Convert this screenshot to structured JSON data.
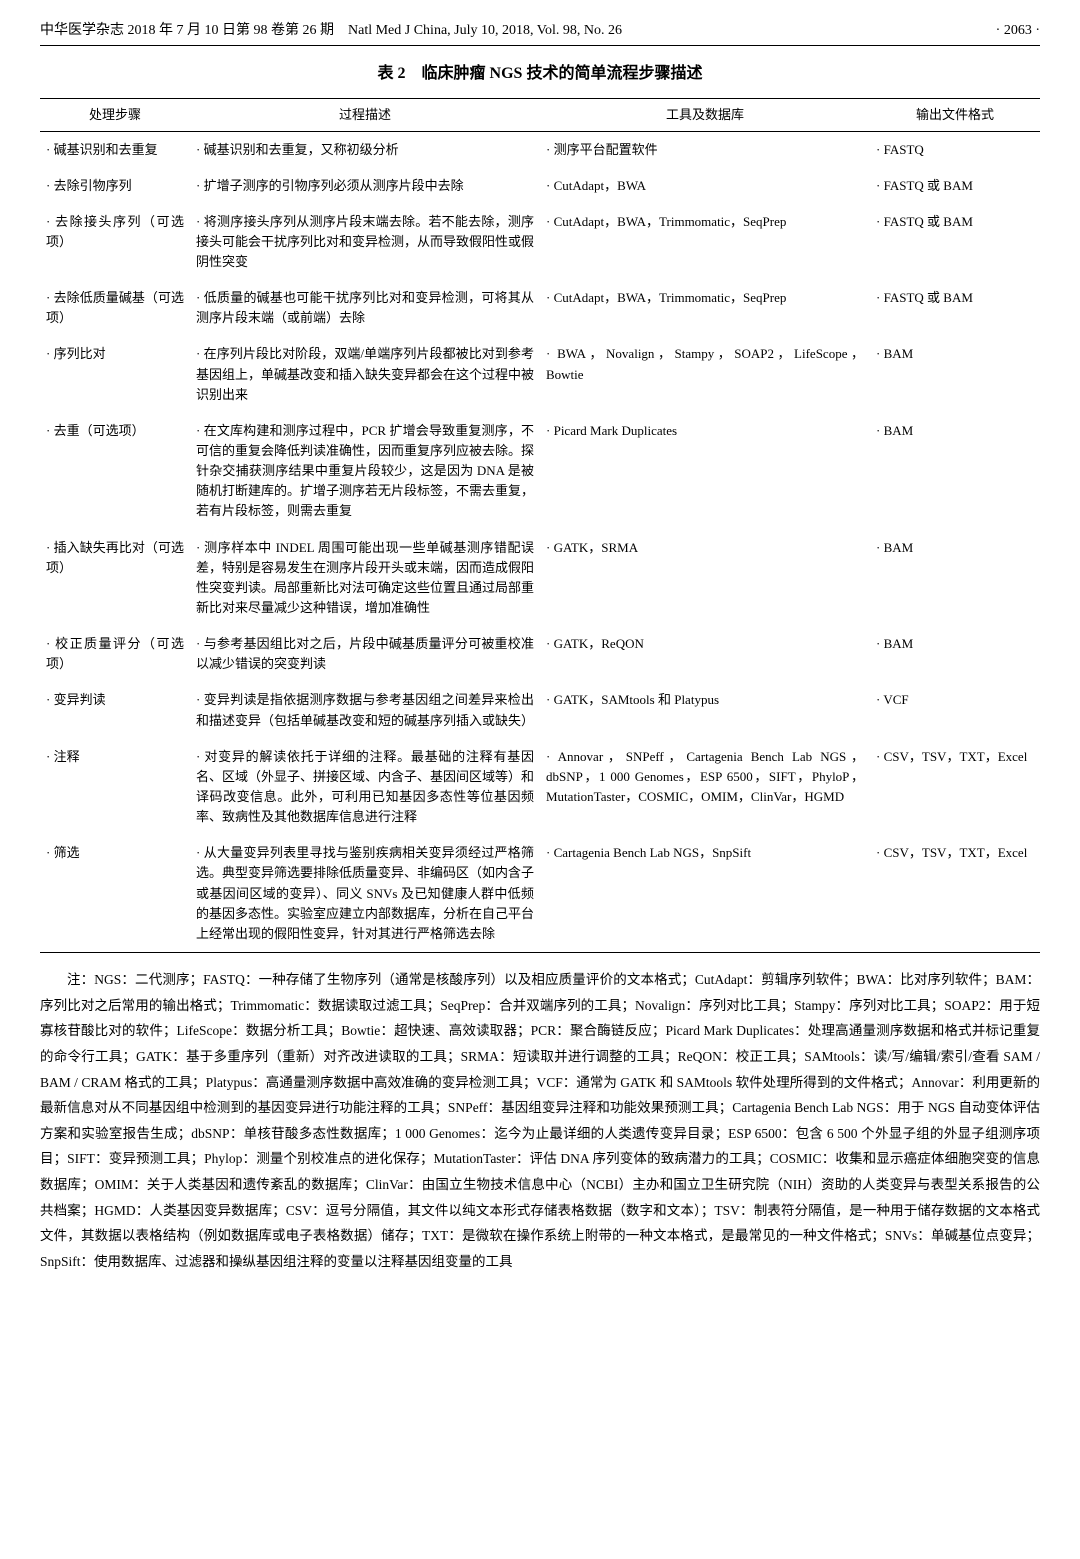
{
  "header": {
    "left": "中华医学杂志 2018 年 7 月 10 日第 98 卷第 26 期　Natl Med J China, July 10, 2018, Vol. 98, No. 26",
    "right": "· 2063 ·"
  },
  "caption": "表 2　临床肿瘤 NGS 技术的简单流程步骤描述",
  "columns": {
    "step": "处理步骤",
    "desc": "过程描述",
    "tool": "工具及数据库",
    "out": "输出文件格式"
  },
  "rows": [
    {
      "step": "碱基识别和去重复",
      "desc": "碱基识别和去重复，又称初级分析",
      "tool": "测序平台配置软件",
      "out": "FASTQ"
    },
    {
      "step": "去除引物序列",
      "desc": "扩增子测序的引物序列必须从测序片段中去除",
      "tool": "CutAdapt，BWA",
      "out": "FASTQ 或 BAM"
    },
    {
      "step": "去除接头序列（可选项）",
      "desc": "将测序接头序列从测序片段末端去除。若不能去除，测序接头可能会干扰序列比对和变异检测，从而导致假阳性或假阴性突变",
      "tool": "CutAdapt，BWA，Trimmomatic，SeqPrep",
      "out": "FASTQ 或 BAM"
    },
    {
      "step": "去除低质量碱基（可选项）",
      "desc": "低质量的碱基也可能干扰序列比对和变异检测，可将其从测序片段末端（或前端）去除",
      "tool": "CutAdapt，BWA，Trimmomatic，SeqPrep",
      "out": "FASTQ 或 BAM"
    },
    {
      "step": "序列比对",
      "desc": "在序列片段比对阶段，双端/单端序列片段都被比对到参考基因组上，单碱基改变和插入缺失变异都会在这个过程中被识别出来",
      "tool": "BWA，Novalign，Stampy，SOAP2，LifeScope，Bowtie",
      "out": "BAM"
    },
    {
      "step": "去重（可选项）",
      "desc": "在文库构建和测序过程中，PCR 扩增会导致重复测序，不可信的重复会降低判读准确性，因而重复序列应被去除。探针杂交捕获测序结果中重复片段较少，这是因为 DNA 是被随机打断建库的。扩增子测序若无片段标签，不需去重复，若有片段标签，则需去重复",
      "tool": "Picard Mark Duplicates",
      "out": "BAM"
    },
    {
      "step": "插入缺失再比对（可选项）",
      "desc": "测序样本中 INDEL 周围可能出现一些单碱基测序错配误差，特别是容易发生在测序片段开头或末端，因而造成假阳性突变判读。局部重新比对法可确定这些位置且通过局部重新比对来尽量减少这种错误，增加准确性",
      "tool": "GATK，SRMA",
      "out": "BAM"
    },
    {
      "step": "校正质量评分（可选项）",
      "desc": "与参考基因组比对之后，片段中碱基质量评分可被重校准以减少错误的突变判读",
      "tool": "GATK，ReQON",
      "out": "BAM"
    },
    {
      "step": "变异判读",
      "desc": "变异判读是指依据测序数据与参考基因组之间差异来检出和描述变异（包括单碱基改变和短的碱基序列插入或缺失）",
      "tool": "GATK，SAMtools 和 Platypus",
      "out": "VCF"
    },
    {
      "step": "注释",
      "desc": "对变异的解读依托于详细的注释。最基础的注释有基因名、区域（外显子、拼接区域、内含子、基因间区域等）和译码改变信息。此外，可利用已知基因多态性等位基因频率、致病性及其他数据库信息进行注释",
      "tool": "Annovar，SNPeff，Cartagenia Bench Lab NGS，dbSNP，1 000 Genomes，ESP 6500，SIFT，PhyloP，MutationTaster，COSMIC，OMIM，ClinVar，HGMD",
      "out": "CSV，TSV，TXT，Excel"
    },
    {
      "step": "筛选",
      "desc": "从大量变异列表里寻找与鉴别疾病相关变异须经过严格筛选。典型变异筛选要排除低质量变异、非编码区（如内含子或基因间区域的变异）、同义 SNVs 及已知健康人群中低频的基因多态性。实验室应建立内部数据库，分析在自己平台上经常出现的假阳性变异，针对其进行严格筛选去除",
      "tool": "Cartagenia Bench Lab NGS，SnpSift",
      "out": "CSV，TSV，TXT，Excel"
    }
  ],
  "note": "注：NGS：二代测序；FASTQ：一种存储了生物序列（通常是核酸序列）以及相应质量评价的文本格式；CutAdapt：剪辑序列软件；BWA：比对序列软件；BAM：序列比对之后常用的输出格式；Trimmomatic：数据读取过滤工具；SeqPrep：合并双端序列的工具；Novalign：序列对比工具；Stampy：序列对比工具；SOAP2：用于短寡核苷酸比对的软件；LifeScope：数据分析工具；Bowtie：超快速、高效读取器；PCR：聚合酶链反应；Picard Mark Duplicates：处理高通量测序数据和格式并标记重复的命令行工具；GATK：基于多重序列（重新）对齐改进读取的工具；SRMA：短读取并进行调整的工具；ReQON：校正工具；SAMtools：读/写/编辑/索引/查看 SAM / BAM / CRAM 格式的工具；Platypus：高通量测序数据中高效准确的变异检测工具；VCF：通常为 GATK 和 SAMtools 软件处理所得到的文件格式；Annovar：利用更新的最新信息对从不同基因组中检测到的基因变异进行功能注释的工具；SNPeff：基因组变异注释和功能效果预测工具；Cartagenia Bench Lab NGS：用于 NGS 自动变体评估方案和实验室报告生成；dbSNP：单核苷酸多态性数据库；1 000 Genomes：迄今为止最详细的人类遗传变异目录；ESP 6500：包含 6 500 个外显子组的外显子组测序项目；SIFT：变异预测工具；Phylop：测量个别校准点的进化保存；MutationTaster：评估 DNA 序列变体的致病潜力的工具；COSMIC：收集和显示癌症体细胞突变的信息数据库；OMIM：关于人类基因和遗传紊乱的数据库；ClinVar：由国立生物技术信息中心（NCBI）主办和国立卫生研究院（NIH）资助的人类变异与表型关系报告的公共档案；HGMD：人类基因变异数据库；CSV：逗号分隔值，其文件以纯文本形式存储表格数据（数字和文本）；TSV：制表符分隔值，是一种用于储存数据的文本格式文件，其数据以表格结构（例如数据库或电子表格数据）储存；TXT：是微软在操作系统上附带的一种文本格式，是最常见的一种文件格式；SNVs：单碱基位点变异；SnpSift：使用数据库、过滤器和操纵基因组注释的变量以注释基因组变量的工具"
}
